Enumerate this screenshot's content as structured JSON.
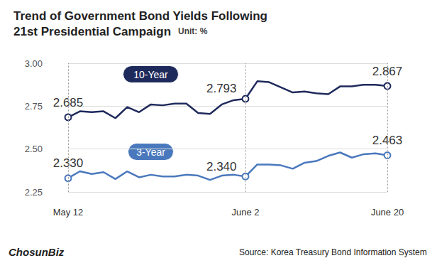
{
  "chart_data": {
    "type": "line",
    "title": "Trend of Government Bond Yields Following\n21st Presidential Campaign",
    "subtitle": "Unit: %",
    "source": "Source: Korea Treasury Bond Information System",
    "logo": "ChosunBiz",
    "categories": [
      "May 12",
      null,
      null,
      null,
      null,
      null,
      null,
      null,
      null,
      null,
      null,
      null,
      null,
      null,
      null,
      "June 2",
      null,
      null,
      null,
      null,
      null,
      null,
      null,
      null,
      null,
      null,
      null,
      "June 20"
    ],
    "series": [
      {
        "name": "10-Year",
        "color": "#1f2a5c",
        "values": [
          2.685,
          2.72,
          2.715,
          2.72,
          2.68,
          2.745,
          2.715,
          2.76,
          2.755,
          2.765,
          2.765,
          2.71,
          2.705,
          2.76,
          2.785,
          2.793,
          2.895,
          2.89,
          2.86,
          2.83,
          2.835,
          2.825,
          2.82,
          2.865,
          2.865,
          2.875,
          2.875,
          2.867
        ],
        "value_labels": [
          "2.685",
          null,
          null,
          null,
          null,
          null,
          null,
          null,
          null,
          null,
          null,
          null,
          null,
          null,
          null,
          "2.793",
          null,
          null,
          null,
          null,
          null,
          null,
          null,
          null,
          null,
          null,
          null,
          "2.867"
        ]
      },
      {
        "name": "3-Year",
        "color": "#4a78bd",
        "values": [
          2.33,
          2.37,
          2.355,
          2.365,
          2.325,
          2.37,
          2.335,
          2.35,
          2.34,
          2.34,
          2.35,
          2.345,
          2.32,
          2.345,
          2.35,
          2.34,
          2.41,
          2.41,
          2.405,
          2.385,
          2.42,
          2.43,
          2.46,
          2.48,
          2.45,
          2.47,
          2.475,
          2.463
        ],
        "value_labels": [
          "2.330",
          null,
          null,
          null,
          null,
          null,
          null,
          null,
          null,
          null,
          null,
          null,
          null,
          null,
          null,
          "2.340",
          null,
          null,
          null,
          null,
          null,
          null,
          null,
          null,
          null,
          null,
          null,
          "2.463"
        ]
      }
    ],
    "ylim": [
      2.25,
      3.0
    ],
    "yticks": [
      2.25,
      {
        "value": 2.5,
        "label": "2.50"
      },
      2.75,
      {
        "value": 3,
        "label": "3.00"
      }
    ],
    "grid": true
  }
}
